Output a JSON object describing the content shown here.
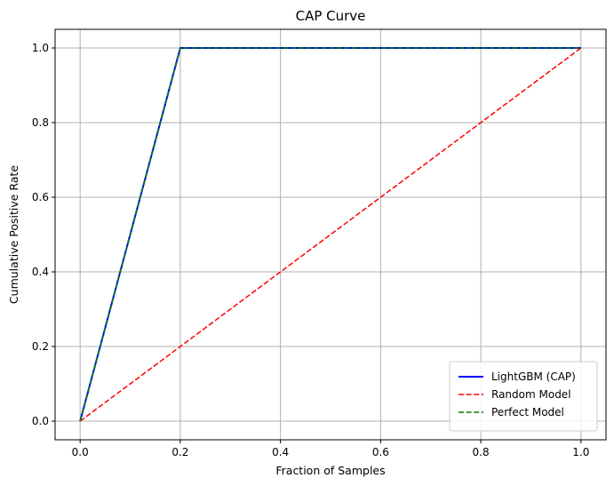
{
  "chart_data": {
    "type": "line",
    "title": "CAP Curve",
    "xlabel": "Fraction of Samples",
    "ylabel": "Cumulative Positive Rate",
    "xlim": [
      -0.05,
      1.05
    ],
    "ylim": [
      -0.05,
      1.05
    ],
    "xticks": [
      "0.0",
      "0.2",
      "0.4",
      "0.6",
      "0.8",
      "1.0"
    ],
    "yticks": [
      "0.0",
      "0.2",
      "0.4",
      "0.6",
      "0.8",
      "1.0"
    ],
    "grid": true,
    "legend_position": "lower-right",
    "series": [
      {
        "name": "LightGBM (CAP)",
        "color": "#0000ff",
        "style": "solid",
        "x": [
          0.0,
          0.2,
          1.0
        ],
        "y": [
          0.0,
          1.0,
          1.0
        ]
      },
      {
        "name": "Random Model",
        "color": "#ff0000",
        "style": "dashed",
        "x": [
          0.0,
          1.0
        ],
        "y": [
          0.0,
          1.0
        ]
      },
      {
        "name": "Perfect Model",
        "color": "#008000",
        "style": "dashed",
        "x": [
          0.0,
          0.2,
          1.0
        ],
        "y": [
          0.0,
          1.0,
          1.0
        ]
      }
    ]
  }
}
